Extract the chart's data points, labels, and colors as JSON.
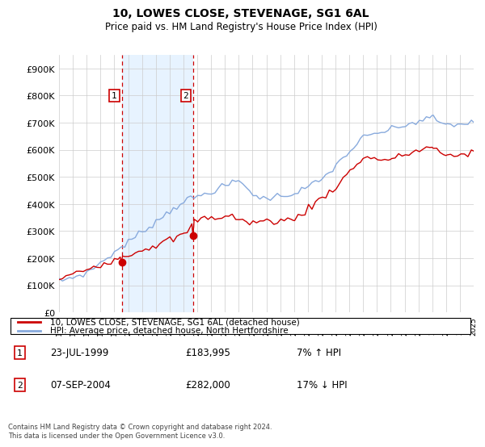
{
  "title": "10, LOWES CLOSE, STEVENAGE, SG1 6AL",
  "subtitle": "Price paid vs. HM Land Registry's House Price Index (HPI)",
  "ylim": [
    0,
    950000
  ],
  "yticks": [
    0,
    100000,
    200000,
    300000,
    400000,
    500000,
    600000,
    700000,
    800000,
    900000
  ],
  "ytick_labels": [
    "£0",
    "£100K",
    "£200K",
    "£300K",
    "£400K",
    "£500K",
    "£600K",
    "£700K",
    "£800K",
    "£900K"
  ],
  "legend_line1": "10, LOWES CLOSE, STEVENAGE, SG1 6AL (detached house)",
  "legend_line2": "HPI: Average price, detached house, North Hertfordshire",
  "sale1_date": "23-JUL-1999",
  "sale1_price": "£183,995",
  "sale1_hpi": "7% ↑ HPI",
  "sale2_date": "07-SEP-2004",
  "sale2_price": "£282,000",
  "sale2_hpi": "17% ↓ HPI",
  "footer": "Contains HM Land Registry data © Crown copyright and database right 2024.\nThis data is licensed under the Open Government Licence v3.0.",
  "line_color_red": "#cc0000",
  "line_color_blue": "#88aadd",
  "shade_color": "#ddeeff",
  "vline_color": "#cc0000",
  "bg_color": "#ffffff",
  "grid_color": "#cccccc",
  "start_year": 1995,
  "end_year": 2025
}
